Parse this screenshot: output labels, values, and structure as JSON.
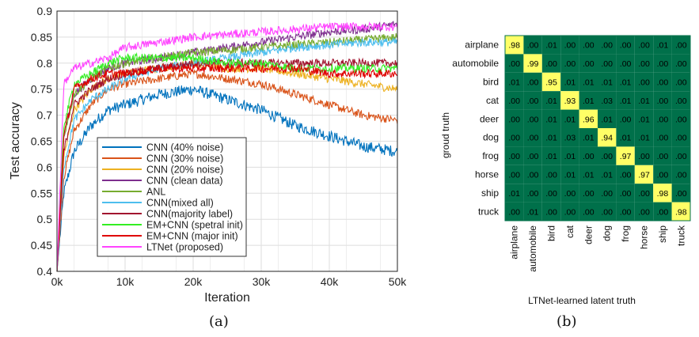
{
  "panels": {
    "left_caption": "(a)",
    "right_caption": "(b)"
  },
  "chart_data": [
    {
      "type": "line",
      "xlabel": "Iteration",
      "ylabel": "Test accuracy",
      "xlim": [
        0,
        50000
      ],
      "ylim": [
        0.4,
        0.9
      ],
      "x_ticks": [
        0,
        10000,
        20000,
        30000,
        40000,
        50000
      ],
      "x_tick_labels": [
        "0k",
        "10k",
        "20k",
        "30k",
        "40k",
        "50k"
      ],
      "y_ticks": [
        0.4,
        0.45,
        0.5,
        0.55,
        0.6,
        0.65,
        0.7,
        0.75,
        0.8,
        0.85,
        0.9
      ],
      "y_tick_labels": [
        "0.4",
        "0.45",
        "0.5",
        "0.55",
        "0.6",
        "0.65",
        "0.7",
        "0.75",
        "0.8",
        "0.85",
        "0.9"
      ],
      "grid": true,
      "legend_position": "bottom-center",
      "x": [
        0,
        1000,
        2500,
        5000,
        7500,
        10000,
        15000,
        20000,
        25000,
        30000,
        35000,
        40000,
        45000,
        50000
      ],
      "series": [
        {
          "name": "CNN (40% noise)",
          "color": "#0072bd",
          "values": [
            0.4,
            0.55,
            0.63,
            0.68,
            0.71,
            0.72,
            0.74,
            0.75,
            0.73,
            0.71,
            0.68,
            0.66,
            0.64,
            0.63
          ]
        },
        {
          "name": "CNN (30% noise)",
          "color": "#d95319",
          "values": [
            0.4,
            0.58,
            0.67,
            0.72,
            0.75,
            0.76,
            0.77,
            0.78,
            0.77,
            0.76,
            0.74,
            0.72,
            0.7,
            0.69
          ]
        },
        {
          "name": "CNN (20% noise)",
          "color": "#edb120",
          "values": [
            0.4,
            0.62,
            0.71,
            0.75,
            0.77,
            0.78,
            0.79,
            0.8,
            0.79,
            0.79,
            0.78,
            0.77,
            0.76,
            0.75
          ]
        },
        {
          "name": "CNN (clean data)",
          "color": "#7e2f8e",
          "values": [
            0.4,
            0.66,
            0.74,
            0.77,
            0.79,
            0.8,
            0.81,
            0.82,
            0.83,
            0.84,
            0.85,
            0.86,
            0.865,
            0.875
          ]
        },
        {
          "name": "ANL",
          "color": "#77ac30",
          "values": [
            0.4,
            0.66,
            0.74,
            0.77,
            0.79,
            0.8,
            0.81,
            0.82,
            0.825,
            0.83,
            0.835,
            0.84,
            0.845,
            0.85
          ]
        },
        {
          "name": "CNN(mixed all)",
          "color": "#4dbeee",
          "values": [
            0.4,
            0.6,
            0.69,
            0.73,
            0.75,
            0.77,
            0.79,
            0.8,
            0.81,
            0.82,
            0.83,
            0.835,
            0.84,
            0.84
          ]
        },
        {
          "name": "CNN(majority label)",
          "color": "#a2142f",
          "values": [
            0.4,
            0.63,
            0.72,
            0.75,
            0.77,
            0.78,
            0.79,
            0.8,
            0.8,
            0.8,
            0.8,
            0.8,
            0.8,
            0.8
          ]
        },
        {
          "name": "EM+CNN (spetral init)",
          "color": "#33ee22",
          "values": [
            0.4,
            0.68,
            0.76,
            0.78,
            0.8,
            0.81,
            0.81,
            0.81,
            0.8,
            0.8,
            0.79,
            0.79,
            0.79,
            0.79
          ]
        },
        {
          "name": "EM+CNN (major init)",
          "color": "#e00000",
          "values": [
            0.4,
            0.66,
            0.75,
            0.77,
            0.78,
            0.78,
            0.79,
            0.79,
            0.79,
            0.79,
            0.79,
            0.78,
            0.78,
            0.78
          ]
        },
        {
          "name": "LTNet (proposed)",
          "color": "#ff44ff",
          "values": [
            0.4,
            0.76,
            0.79,
            0.8,
            0.81,
            0.83,
            0.84,
            0.85,
            0.855,
            0.86,
            0.865,
            0.87,
            0.87,
            0.87
          ]
        }
      ]
    },
    {
      "type": "heatmap",
      "xlabel": "LTNet-learned latent truth",
      "ylabel": "groud truth",
      "labels": [
        "airplane",
        "automobile",
        "bird",
        "cat",
        "deer",
        "dog",
        "frog",
        "horse",
        "ship",
        "truck"
      ],
      "background_color": "#00704a",
      "diagonal_color": "#ffff66",
      "cells": [
        [
          ".98",
          ".00",
          ".01",
          ".00",
          ".00",
          ".00",
          ".00",
          ".00",
          ".01",
          ".00"
        ],
        [
          ".00",
          ".99",
          ".00",
          ".00",
          ".00",
          ".00",
          ".00",
          ".00",
          ".00",
          ".00"
        ],
        [
          ".01",
          ".00",
          ".95",
          ".01",
          ".01",
          ".01",
          ".01",
          ".00",
          ".00",
          ".00"
        ],
        [
          ".00",
          ".00",
          ".01",
          ".93",
          ".01",
          ".03",
          ".01",
          ".01",
          ".00",
          ".00"
        ],
        [
          ".00",
          ".00",
          ".01",
          ".01",
          ".96",
          ".01",
          ".00",
          ".01",
          ".00",
          ".00"
        ],
        [
          ".00",
          ".00",
          ".01",
          ".03",
          ".01",
          ".94",
          ".01",
          ".01",
          ".00",
          ".00"
        ],
        [
          ".00",
          ".00",
          ".01",
          ".01",
          ".00",
          ".00",
          ".97",
          ".00",
          ".00",
          ".00"
        ],
        [
          ".00",
          ".00",
          ".00",
          ".01",
          ".01",
          ".01",
          ".00",
          ".97",
          ".00",
          ".00"
        ],
        [
          ".01",
          ".00",
          ".00",
          ".00",
          ".00",
          ".00",
          ".00",
          ".00",
          ".98",
          ".00"
        ],
        [
          ".00",
          ".01",
          ".00",
          ".00",
          ".00",
          ".00",
          ".00",
          ".00",
          ".00",
          ".98"
        ]
      ]
    }
  ]
}
